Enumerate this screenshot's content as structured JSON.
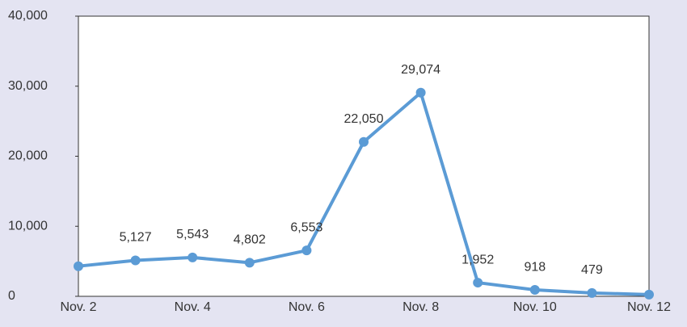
{
  "chart_data": {
    "type": "line",
    "categories": [
      "Nov. 2",
      null,
      "Nov. 4",
      null,
      "Nov. 6",
      null,
      "Nov. 8",
      null,
      "Nov. 10",
      null,
      "Nov. 12"
    ],
    "series": [
      {
        "color": "#5b9bd5",
        "values": [
          4300,
          5127,
          5543,
          4802,
          6553,
          22050,
          29074,
          1952,
          918,
          479,
          250
        ],
        "value_labels": [
          null,
          "5,127",
          "5,543",
          "4,802",
          "6,553",
          "22,050",
          "29,074",
          "1,952",
          "918",
          "479",
          null
        ]
      }
    ],
    "ylim": [
      0,
      40000
    ],
    "yticks": [
      0,
      {
        "value": 10000,
        "label": "10,000"
      },
      {
        "value": 20000,
        "label": "20,000"
      },
      {
        "value": 30000,
        "label": "30,000"
      },
      {
        "value": 40000,
        "label": "40,000"
      }
    ]
  }
}
